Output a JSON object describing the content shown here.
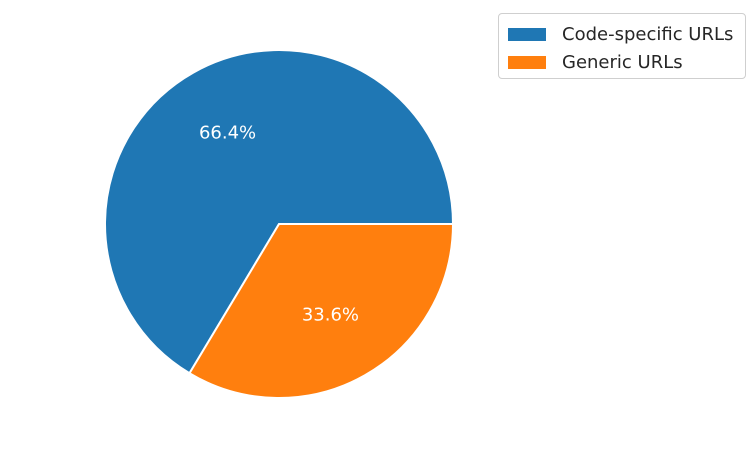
{
  "chart_data": {
    "type": "pie",
    "title": "",
    "slices": [
      {
        "label": "Code-specific URLs",
        "value": 66.4,
        "display": "66.4%",
        "color": "#1f77b4"
      },
      {
        "label": "Generic URLs",
        "value": 33.6,
        "display": "33.6%",
        "color": "#ff7f0e"
      }
    ],
    "start_angle_deg": 0,
    "direction": "counterclockwise",
    "wedge_edge_color": "#ffffff",
    "label_color": "#ffffff",
    "legend": {
      "placement": "upper-right outside",
      "entries": [
        "Code-specific URLs",
        "Generic URLs"
      ]
    }
  }
}
